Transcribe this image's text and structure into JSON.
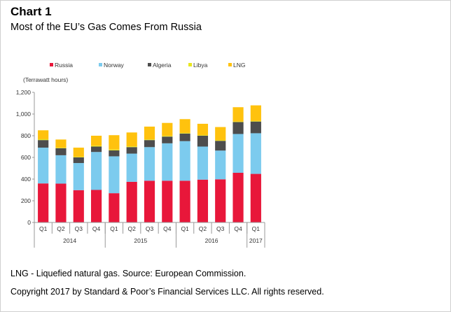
{
  "header": {
    "chart_label": "Chart 1",
    "title": "Most of the EU’s Gas Comes From Russia"
  },
  "footer": {
    "note": "LNG - Liquefied natural gas. Source: European Commission.",
    "copyright": "Copyright 2017 by Standard & Poor’s Financial Services LLC. All rights reserved."
  },
  "chart_data": {
    "type": "bar",
    "stacked": true,
    "ylabel": "(Terrawatt hours)",
    "ylim": [
      0,
      1200
    ],
    "yticks": [
      "0",
      "200",
      "400",
      "600",
      "800",
      "1,000",
      "1,200"
    ],
    "grid": false,
    "legend_position": "top",
    "categories": [
      "Q1",
      "Q2",
      "Q3",
      "Q4",
      "Q1",
      "Q2",
      "Q3",
      "Q4",
      "Q1",
      "Q2",
      "Q3",
      "Q4",
      "Q1"
    ],
    "year_groups": [
      {
        "label": "2014",
        "count": 4
      },
      {
        "label": "2015",
        "count": 4
      },
      {
        "label": "2016",
        "count": 4
      },
      {
        "label": "2017",
        "count": 1
      }
    ],
    "series": [
      {
        "name": "Russia",
        "color": "#e8173a",
        "values": [
          360,
          358,
          298,
          300,
          270,
          375,
          385,
          385,
          385,
          395,
          398,
          458,
          448
        ]
      },
      {
        "name": "Norway",
        "color": "#7ccbee",
        "values": [
          330,
          262,
          250,
          350,
          340,
          260,
          310,
          345,
          365,
          305,
          265,
          358,
          375
        ]
      },
      {
        "name": "Algeria",
        "color": "#4d4d4d",
        "values": [
          70,
          65,
          52,
          50,
          55,
          60,
          65,
          62,
          70,
          100,
          90,
          110,
          108
        ]
      },
      {
        "name": "Libya",
        "color": "#e8e61e",
        "values": [
          8,
          5,
          5,
          8,
          8,
          7,
          6,
          6,
          5,
          5,
          5,
          5,
          5
        ]
      },
      {
        "name": "LNG",
        "color": "#ffc20e",
        "values": [
          82,
          75,
          85,
          92,
          132,
          128,
          118,
          120,
          128,
          105,
          122,
          132,
          144
        ]
      }
    ]
  }
}
